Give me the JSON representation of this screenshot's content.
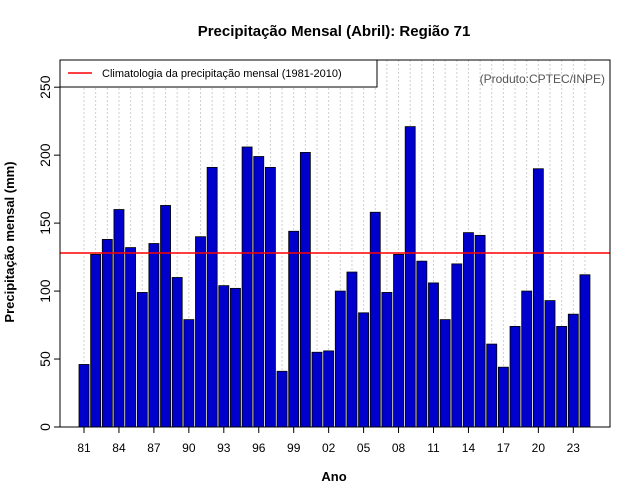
{
  "chart_data": {
    "type": "bar",
    "title": "Precipitação Mensal (Abril): Região 71",
    "xlabel": "Ano",
    "ylabel": "Precipitação mensal (mm)",
    "ylim": [
      0,
      270
    ],
    "yticks": [
      0,
      50,
      100,
      150,
      200,
      250
    ],
    "years": [
      "81",
      "82",
      "83",
      "84",
      "85",
      "86",
      "87",
      "88",
      "89",
      "90",
      "91",
      "92",
      "93",
      "94",
      "95",
      "96",
      "97",
      "98",
      "99",
      "00",
      "01",
      "02",
      "03",
      "04",
      "05",
      "06",
      "07",
      "08",
      "09",
      "10",
      "11",
      "12",
      "13",
      "14",
      "15",
      "16",
      "17",
      "18",
      "19",
      "20",
      "21",
      "22",
      "23",
      "24"
    ],
    "xtick_labels": [
      "81",
      "84",
      "87",
      "90",
      "93",
      "96",
      "99",
      "02",
      "05",
      "08",
      "11",
      "14",
      "17",
      "20",
      "23"
    ],
    "values": [
      46,
      127,
      138,
      160,
      132,
      99,
      135,
      163,
      110,
      79,
      140,
      191,
      104,
      102,
      206,
      199,
      191,
      41,
      144,
      202,
      55,
      56,
      100,
      114,
      84,
      158,
      99,
      127,
      221,
      122,
      106,
      79,
      120,
      143,
      141,
      61,
      44,
      74,
      100,
      190,
      93,
      74,
      83,
      112
    ],
    "climatology": {
      "label": "Climatologia da precipitação mensal (1981-2010)",
      "value": 128,
      "color": "#ff0000"
    },
    "grid": true,
    "legend_position": "top-left",
    "bar_color": "#0000cd",
    "bar_edge_color": "#000000",
    "source_note": "(Produto:CPTEC/INPE)"
  }
}
